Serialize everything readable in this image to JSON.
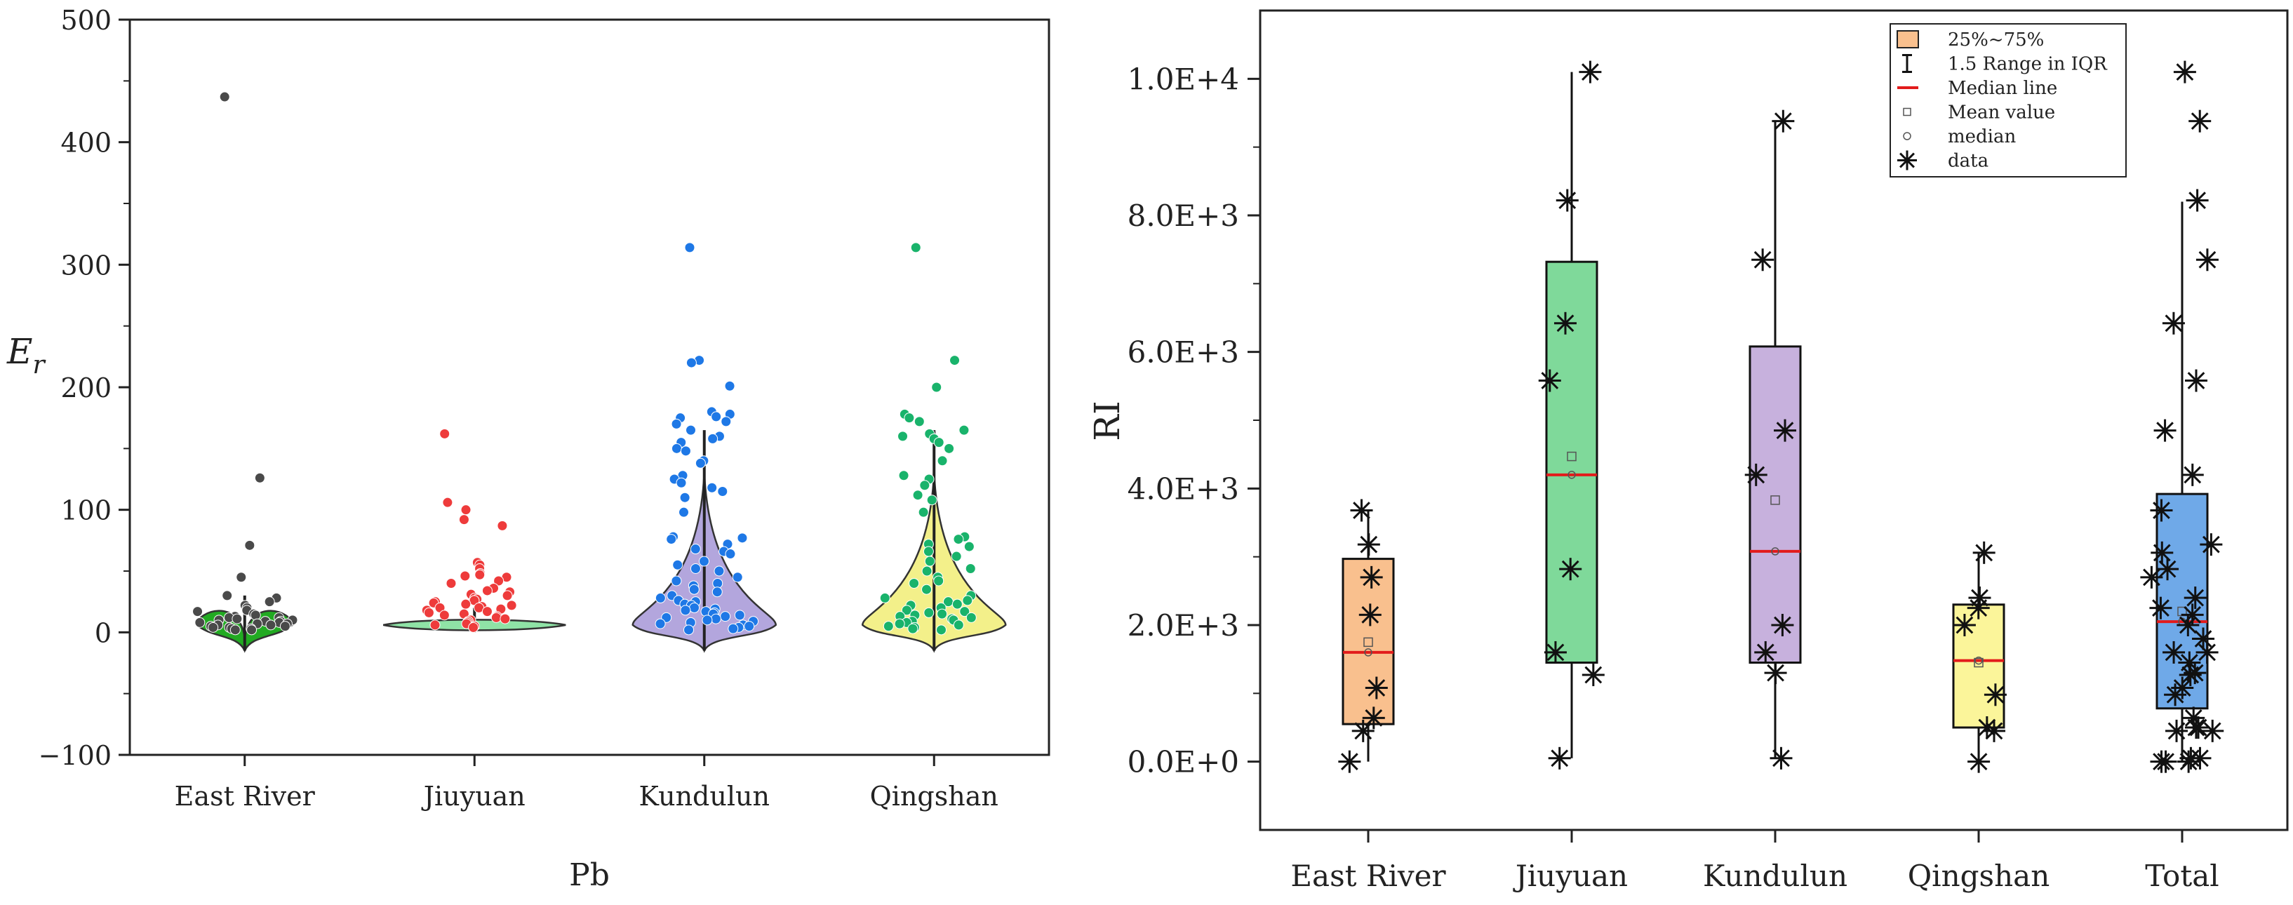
{
  "chart_data": [
    {
      "type": "violin-strip",
      "title": "",
      "xlabel": "Pb",
      "ylabel": "Er",
      "ylabel_base": "E",
      "ylabel_sub": "r",
      "ylim": [
        -100,
        500
      ],
      "yticks": [
        -100,
        0,
        100,
        200,
        300,
        400,
        500
      ],
      "ytick_labels": [
        "−100",
        "0",
        "100",
        "200",
        "300",
        "400",
        "500"
      ],
      "categories": [
        "East River",
        "Jiuyuan",
        "Kundulun",
        "Qingshan"
      ],
      "colors": {
        "East River": "#4a4a4a",
        "Jiuyuan": "#ee3b3b",
        "Kundulun": "#1e78e6",
        "Qingshan": "#19b36b"
      },
      "violin_fill": {
        "East River": "#22aa22",
        "Jiuyuan": "#8fe3a6",
        "Kundulun": "#b3a6dd",
        "Qingshan": "#f3f08a"
      },
      "whisker": {
        "East River": [
          -15,
          30
        ],
        "Jiuyuan": [
          0,
          20
        ],
        "Kundulun": [
          -15,
          165
        ],
        "Qingshan": [
          -15,
          165
        ]
      },
      "points": {
        "East River": [
          437,
          126,
          71,
          45,
          30,
          28,
          25,
          22,
          20,
          18,
          17,
          15,
          14,
          13,
          12,
          12,
          11,
          10,
          10,
          9,
          9,
          8,
          8,
          7,
          7,
          6,
          6,
          5,
          5,
          4,
          4,
          3,
          3,
          2,
          2
        ],
        "Jiuyuan": [
          162,
          106,
          100,
          92,
          87,
          57,
          55,
          52,
          48,
          47,
          46,
          45,
          42,
          40,
          36,
          34,
          33,
          31,
          30,
          28,
          27,
          26,
          25,
          24,
          23,
          22,
          21,
          20,
          20,
          19,
          18,
          17,
          16,
          15,
          14,
          13,
          12,
          11,
          10,
          9,
          8,
          7,
          6,
          5,
          4
        ],
        "Kundulun": [
          314,
          222,
          220,
          201,
          180,
          178,
          176,
          175,
          172,
          170,
          165,
          160,
          158,
          155,
          150,
          148,
          140,
          138,
          128,
          125,
          122,
          118,
          115,
          110,
          98,
          78,
          77,
          76,
          72,
          68,
          66,
          64,
          58,
          55,
          52,
          50,
          45,
          42,
          40,
          38,
          35,
          33,
          30,
          28,
          26,
          25,
          23,
          22,
          20,
          19,
          18,
          17,
          16,
          15,
          14,
          13,
          12,
          11,
          10,
          9,
          8,
          7,
          6,
          5,
          4,
          3,
          2
        ],
        "Qingshan": [
          314,
          222,
          200,
          178,
          175,
          172,
          165,
          162,
          160,
          158,
          155,
          150,
          140,
          128,
          125,
          120,
          112,
          108,
          98,
          78,
          76,
          72,
          70,
          66,
          62,
          58,
          52,
          50,
          45,
          42,
          40,
          35,
          30,
          28,
          26,
          25,
          23,
          22,
          20,
          18,
          17,
          16,
          15,
          14,
          13,
          12,
          11,
          10,
          9,
          8,
          7,
          6,
          5,
          4,
          3,
          2
        ]
      }
    },
    {
      "type": "box",
      "title": "",
      "xlabel": "",
      "ylabel": "RI",
      "ylim": [
        -1000,
        11000
      ],
      "yticks": [
        0,
        2000,
        4000,
        6000,
        8000,
        10000
      ],
      "ytick_labels": [
        "0.0E+0",
        "2.0E+3",
        "4.0E+3",
        "6.0E+3",
        "8.0E+3",
        "1.0E+4"
      ],
      "categories": [
        "East River",
        "Jiuyuan",
        "Kundulun",
        "Qingshan",
        "Total"
      ],
      "boxes": [
        {
          "name": "East River",
          "q1": 550,
          "q3": 2970,
          "median": 1600,
          "mean": 1750,
          "whisker_low": 0,
          "whisker_high": 3680,
          "fill": "#f9c08e",
          "data": [
            0,
            450,
            640,
            1080,
            2150,
            2700,
            3180,
            3680
          ]
        },
        {
          "name": "Jiuyuan",
          "q1": 1450,
          "q3": 7320,
          "median": 4200,
          "mean": 4470,
          "whisker_low": 50,
          "whisker_high": 10100,
          "fill": "#7fd99a",
          "data": [
            50,
            1270,
            1600,
            2820,
            5580,
            6420,
            8220,
            10100
          ]
        },
        {
          "name": "Kundulun",
          "q1": 1450,
          "q3": 6080,
          "median": 3080,
          "mean": 3830,
          "whisker_low": 50,
          "whisker_high": 9380,
          "fill": "#c7b1dd",
          "data": [
            50,
            1300,
            1600,
            2000,
            4200,
            4850,
            7350,
            9380
          ]
        },
        {
          "name": "Qingshan",
          "q1": 500,
          "q3": 2300,
          "median": 1480,
          "mean": 1450,
          "whisker_low": 0,
          "whisker_high": 3060,
          "fill": "#fbf59a",
          "data": [
            0,
            450,
            500,
            980,
            2000,
            2250,
            2400,
            3060
          ]
        },
        {
          "name": "Total",
          "q1": 780,
          "q3": 3920,
          "median": 2050,
          "mean": 2200,
          "whisker_low": 0,
          "whisker_high": 8200,
          "fill": "#6fa9e8",
          "data": [
            0,
            0,
            0,
            50,
            50,
            450,
            450,
            500,
            500,
            640,
            980,
            1080,
            1270,
            1300,
            1450,
            1600,
            1600,
            1800,
            2000,
            2150,
            2250,
            2400,
            2700,
            2820,
            3060,
            3180,
            3680,
            4200,
            4850,
            5580,
            6420,
            7350,
            8220,
            9380,
            10100
          ]
        }
      ],
      "legend": {
        "position": "top-right",
        "items": [
          "25%~75%",
          "1.5 Range in IQR",
          "Median line",
          "Mean value",
          "median",
          "data"
        ]
      }
    }
  ]
}
